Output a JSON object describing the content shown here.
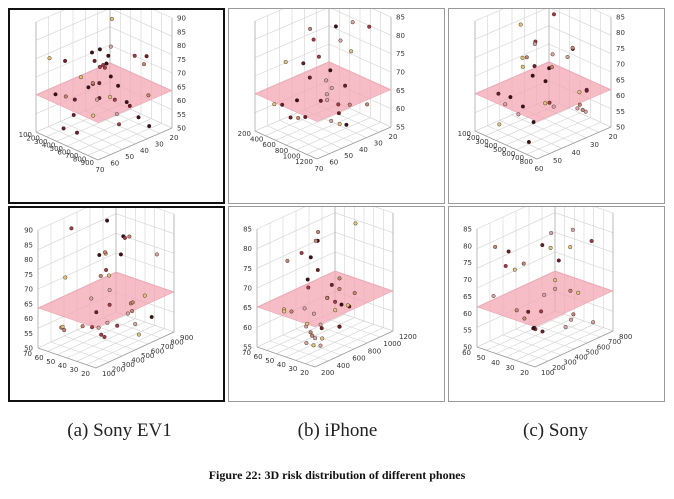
{
  "figure_caption": "Figure 22: 3D risk distribution of different phones",
  "panel_captions": [
    "(a) Sony EV1",
    "(b) iPhone",
    "(c) Sony"
  ],
  "colors": {
    "plane": "#f4a7b4",
    "points": [
      "#3b0f14",
      "#6e1d28",
      "#a33a45",
      "#c8846e",
      "#e2c47a",
      "#d9a6a6"
    ]
  },
  "chart_data": [
    {
      "type": "scatter",
      "view": "top",
      "phone": "Sony EV1",
      "z_ticks": [
        "50",
        "55",
        "60",
        "65",
        "70",
        "75",
        "80",
        "85",
        "90"
      ],
      "a_ticks": [
        "100",
        "200",
        "300",
        "400",
        "500",
        "600",
        "700",
        "800",
        "900"
      ],
      "b_ticks": [
        "20",
        "30",
        "40",
        "50",
        "60",
        "70"
      ]
    },
    {
      "type": "scatter",
      "view": "top",
      "phone": "iPhone",
      "z_ticks": [
        "55",
        "60",
        "65",
        "70",
        "75",
        "80",
        "85"
      ],
      "a_ticks": [
        "200",
        "400",
        "600",
        "800",
        "1000",
        "1200"
      ],
      "b_ticks": [
        "20",
        "30",
        "40",
        "50",
        "60",
        "70"
      ]
    },
    {
      "type": "scatter",
      "view": "top",
      "phone": "Sony",
      "z_ticks": [
        "50",
        "55",
        "60",
        "65",
        "70",
        "75",
        "80",
        "85"
      ],
      "a_ticks": [
        "100",
        "200",
        "300",
        "400",
        "500",
        "600",
        "700",
        "800"
      ],
      "b_ticks": [
        "20",
        "30",
        "40",
        "50",
        "60"
      ]
    },
    {
      "type": "scatter",
      "view": "bottom",
      "phone": "Sony EV1",
      "z_ticks": [
        "50",
        "55",
        "60",
        "65",
        "70",
        "75",
        "80",
        "85",
        "90"
      ],
      "a_ticks": [
        "100",
        "200",
        "300",
        "400",
        "500",
        "600",
        "700",
        "800",
        "900"
      ],
      "b_ticks": [
        "20",
        "30",
        "40",
        "50",
        "60",
        "70"
      ]
    },
    {
      "type": "scatter",
      "view": "bottom",
      "phone": "iPhone",
      "z_ticks": [
        "55",
        "60",
        "65",
        "70",
        "75",
        "80",
        "85"
      ],
      "a_ticks": [
        "200",
        "400",
        "600",
        "800",
        "1000",
        "1200"
      ],
      "b_ticks": [
        "20",
        "30",
        "40",
        "50",
        "60",
        "70"
      ]
    },
    {
      "type": "scatter",
      "view": "bottom",
      "phone": "Sony",
      "z_ticks": [
        "50",
        "55",
        "60",
        "65",
        "70",
        "75",
        "80",
        "85"
      ],
      "a_ticks": [
        "100",
        "200",
        "300",
        "400",
        "500",
        "600",
        "700",
        "800"
      ],
      "b_ticks": [
        "20",
        "30",
        "40",
        "50",
        "60"
      ]
    }
  ]
}
